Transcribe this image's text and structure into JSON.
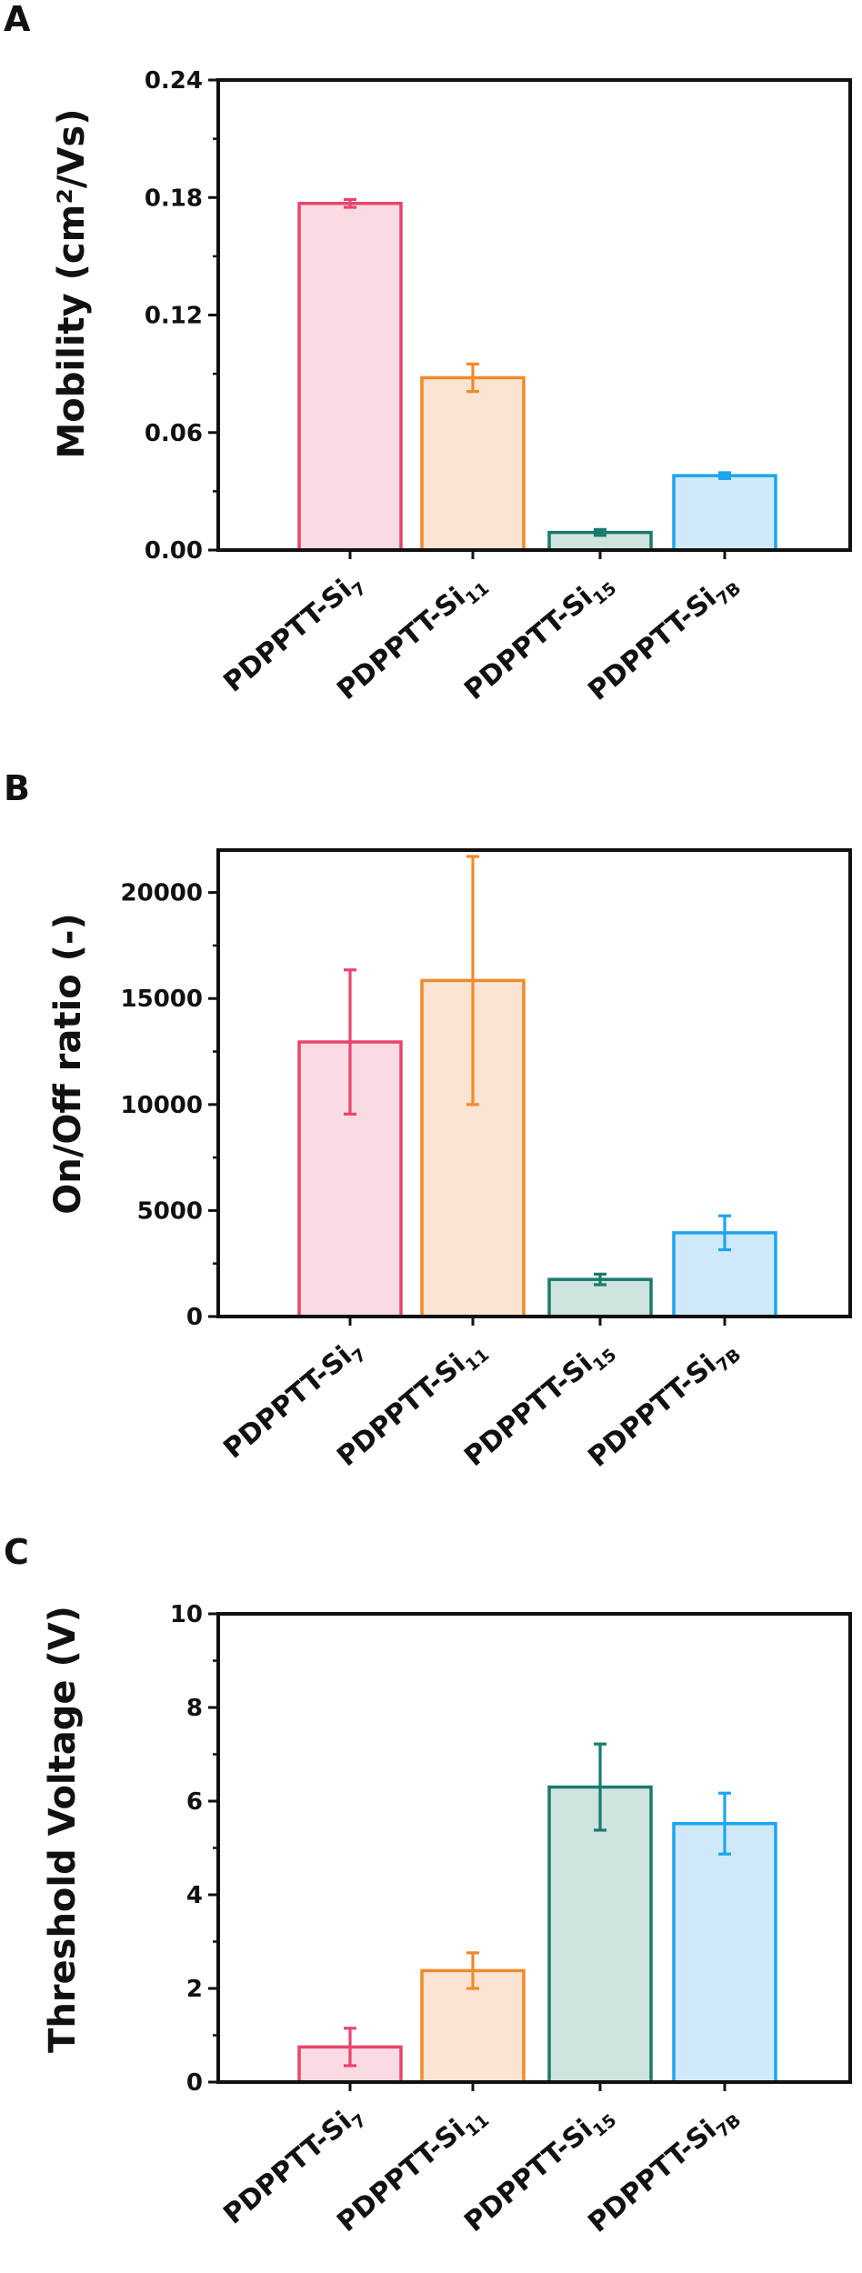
{
  "chart_data": [
    {
      "panel": "A",
      "type": "bar",
      "ylabel": "Mobility (cm²/Vs)",
      "ylim": [
        0,
        0.24
      ],
      "yticks": [
        "0.00",
        "0.06",
        "0.12",
        "0.18",
        "0.24"
      ],
      "categories": [
        {
          "base": "PDPPTT-Si",
          "sub": "7"
        },
        {
          "base": "PDPPTT-Si",
          "sub": "11"
        },
        {
          "base": "PDPPTT-Si",
          "sub": "15"
        },
        {
          "base": "PDPPTT-Si",
          "sub": "7B"
        }
      ],
      "values": [
        0.177,
        0.088,
        0.009,
        0.038
      ],
      "errors": [
        0.002,
        0.007,
        0.0015,
        0.0015
      ],
      "grid": false
    },
    {
      "panel": "B",
      "type": "bar",
      "ylabel": "On/Off ratio (-)",
      "ylim": [
        0,
        22000
      ],
      "yticks": [
        "0",
        "5000",
        "10000",
        "15000",
        "20000"
      ],
      "categories": [
        {
          "base": "PDPPTT-Si",
          "sub": "7"
        },
        {
          "base": "PDPPTT-Si",
          "sub": "11"
        },
        {
          "base": "PDPPTT-Si",
          "sub": "15"
        },
        {
          "base": "PDPPTT-Si",
          "sub": "7B"
        }
      ],
      "values": [
        12950,
        15850,
        1750,
        3950
      ],
      "errors": [
        3400,
        5850,
        250,
        800
      ],
      "grid": false
    },
    {
      "panel": "C",
      "type": "bar",
      "ylabel": "Threshold Voltage (V)",
      "ylim": [
        0,
        10
      ],
      "yticks": [
        "0",
        "2",
        "4",
        "6",
        "8",
        "10"
      ],
      "categories": [
        {
          "base": "PDPPTT-Si",
          "sub": "7"
        },
        {
          "base": "PDPPTT-Si",
          "sub": "11"
        },
        {
          "base": "PDPPTT-Si",
          "sub": "15"
        },
        {
          "base": "PDPPTT-Si",
          "sub": "7B"
        }
      ],
      "values": [
        0.75,
        2.38,
        6.3,
        5.52
      ],
      "errors": [
        0.4,
        0.38,
        0.92,
        0.65
      ],
      "grid": false
    }
  ],
  "colors": {
    "edges": [
      "#e8456e",
      "#f08a2c",
      "#1a7a6e",
      "#1da5ef"
    ],
    "fills": [
      "#fadbe3",
      "#fbe4d2",
      "#cfe3df",
      "#cfe9f8"
    ],
    "axis": "#111111"
  }
}
